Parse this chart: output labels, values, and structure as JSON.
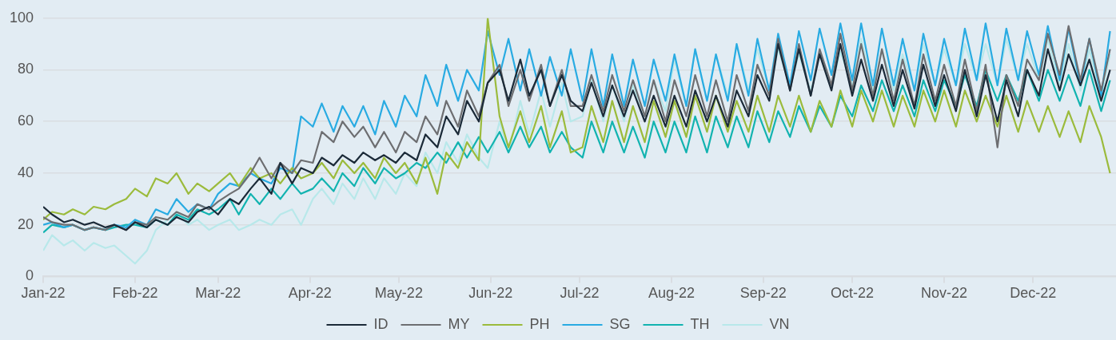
{
  "chart_data": {
    "type": "line",
    "x": [
      "2022-01-01",
      "2022-01-04",
      "2022-01-08",
      "2022-01-11",
      "2022-01-15",
      "2022-01-18",
      "2022-01-22",
      "2022-01-25",
      "2022-01-29",
      "2022-02-01",
      "2022-02-05",
      "2022-02-08",
      "2022-02-12",
      "2022-02-15",
      "2022-02-19",
      "2022-02-22",
      "2022-02-26",
      "2022-03-01",
      "2022-03-05",
      "2022-03-08",
      "2022-03-12",
      "2022-03-15",
      "2022-03-19",
      "2022-03-22",
      "2022-03-26",
      "2022-03-29",
      "2022-04-02",
      "2022-04-05",
      "2022-04-09",
      "2022-04-12",
      "2022-04-16",
      "2022-04-19",
      "2022-04-23",
      "2022-04-26",
      "2022-04-30",
      "2022-05-03",
      "2022-05-07",
      "2022-05-10",
      "2022-05-14",
      "2022-05-17",
      "2022-05-21",
      "2022-05-24",
      "2022-05-28",
      "2022-05-31",
      "2022-06-04",
      "2022-06-07",
      "2022-06-11",
      "2022-06-14",
      "2022-06-18",
      "2022-06-21",
      "2022-06-25",
      "2022-06-28",
      "2022-07-02",
      "2022-07-05",
      "2022-07-09",
      "2022-07-12",
      "2022-07-16",
      "2022-07-19",
      "2022-07-23",
      "2022-07-26",
      "2022-07-30",
      "2022-08-02",
      "2022-08-06",
      "2022-08-09",
      "2022-08-13",
      "2022-08-16",
      "2022-08-20",
      "2022-08-23",
      "2022-08-27",
      "2022-08-30",
      "2022-09-03",
      "2022-09-06",
      "2022-09-10",
      "2022-09-13",
      "2022-09-17",
      "2022-09-20",
      "2022-09-24",
      "2022-09-27",
      "2022-10-01",
      "2022-10-04",
      "2022-10-08",
      "2022-10-11",
      "2022-10-15",
      "2022-10-18",
      "2022-10-22",
      "2022-10-25",
      "2022-10-29",
      "2022-11-01",
      "2022-11-05",
      "2022-11-08",
      "2022-11-12",
      "2022-11-15",
      "2022-11-19",
      "2022-11-22",
      "2022-11-26",
      "2022-11-29",
      "2022-12-03",
      "2022-12-06",
      "2022-12-10",
      "2022-12-13",
      "2022-12-17",
      "2022-12-20",
      "2022-12-24",
      "2022-12-27"
    ],
    "series": [
      {
        "name": "ID",
        "color": "#1b2a38",
        "values": [
          27,
          24,
          21,
          22,
          20,
          21,
          19,
          20,
          18,
          21,
          19,
          22,
          20,
          23,
          21,
          25,
          27,
          24,
          30,
          28,
          34,
          38,
          32,
          44,
          36,
          42,
          40,
          46,
          43,
          47,
          44,
          48,
          45,
          47,
          44,
          48,
          45,
          55,
          50,
          62,
          55,
          68,
          60,
          75,
          80,
          68,
          84,
          70,
          80,
          66,
          78,
          68,
          64,
          75,
          62,
          74,
          62,
          72,
          60,
          70,
          58,
          70,
          58,
          72,
          60,
          70,
          58,
          72,
          62,
          78,
          68,
          90,
          72,
          88,
          70,
          86,
          72,
          90,
          70,
          84,
          68,
          82,
          66,
          80,
          65,
          82,
          66,
          78,
          64,
          80,
          62,
          78,
          60,
          76,
          62,
          80,
          70,
          88,
          72,
          86,
          74,
          84,
          68,
          80
        ]
      },
      {
        "name": "MY",
        "color": "#6d6e71",
        "values": [
          23,
          21,
          20,
          20,
          18,
          19,
          18,
          20,
          18,
          21,
          20,
          23,
          22,
          25,
          23,
          28,
          26,
          29,
          32,
          34,
          40,
          46,
          38,
          44,
          40,
          45,
          44,
          56,
          52,
          60,
          54,
          58,
          50,
          56,
          48,
          56,
          52,
          62,
          55,
          68,
          58,
          72,
          62,
          75,
          82,
          66,
          80,
          68,
          82,
          66,
          80,
          66,
          66,
          78,
          64,
          78,
          64,
          76,
          62,
          76,
          60,
          76,
          62,
          78,
          62,
          76,
          60,
          78,
          64,
          82,
          70,
          92,
          72,
          90,
          70,
          88,
          74,
          94,
          72,
          90,
          70,
          88,
          68,
          84,
          66,
          86,
          68,
          82,
          66,
          84,
          64,
          82,
          50,
          78,
          66,
          84,
          76,
          94,
          78,
          97,
          76,
          92,
          72,
          88
        ]
      },
      {
        "name": "PH",
        "color": "#9bbb3c",
        "values": [
          22,
          25,
          24,
          26,
          24,
          27,
          26,
          28,
          30,
          34,
          31,
          38,
          36,
          40,
          32,
          36,
          33,
          36,
          40,
          35,
          42,
          38,
          40,
          36,
          42,
          38,
          40,
          44,
          38,
          45,
          40,
          44,
          38,
          46,
          40,
          44,
          36,
          46,
          32,
          48,
          42,
          52,
          45,
          100,
          62,
          50,
          64,
          52,
          66,
          50,
          64,
          48,
          50,
          66,
          52,
          68,
          52,
          66,
          52,
          68,
          54,
          68,
          54,
          70,
          56,
          70,
          56,
          68,
          56,
          70,
          56,
          70,
          58,
          70,
          56,
          68,
          58,
          72,
          58,
          72,
          60,
          72,
          58,
          70,
          58,
          72,
          60,
          72,
          58,
          72,
          60,
          70,
          58,
          70,
          56,
          68,
          56,
          66,
          54,
          64,
          52,
          66,
          54,
          40
        ]
      },
      {
        "name": "SG",
        "color": "#29abe2",
        "values": [
          20,
          21,
          19,
          20,
          18,
          19,
          18,
          20,
          19,
          22,
          20,
          26,
          24,
          30,
          25,
          28,
          26,
          32,
          36,
          35,
          40,
          38,
          36,
          42,
          40,
          62,
          58,
          67,
          56,
          66,
          58,
          66,
          55,
          68,
          58,
          70,
          62,
          78,
          66,
          82,
          68,
          80,
          72,
          95,
          78,
          92,
          72,
          88,
          70,
          85,
          70,
          88,
          68,
          88,
          66,
          86,
          66,
          84,
          66,
          84,
          68,
          86,
          66,
          88,
          68,
          86,
          68,
          90,
          70,
          92,
          72,
          94,
          74,
          95,
          76,
          96,
          78,
          98,
          76,
          98,
          74,
          96,
          74,
          92,
          72,
          94,
          74,
          92,
          74,
          96,
          76,
          98,
          74,
          96,
          76,
          95,
          78,
          97,
          76,
          96,
          74,
          92,
          70,
          95
        ]
      },
      {
        "name": "TH",
        "color": "#12b3b0",
        "values": [
          17,
          20,
          19,
          20,
          18,
          19,
          18,
          19,
          20,
          20,
          19,
          22,
          20,
          24,
          22,
          26,
          24,
          26,
          30,
          24,
          32,
          28,
          34,
          30,
          36,
          32,
          34,
          38,
          33,
          40,
          35,
          42,
          36,
          42,
          38,
          40,
          44,
          42,
          48,
          44,
          52,
          46,
          54,
          48,
          56,
          48,
          58,
          50,
          58,
          48,
          56,
          50,
          46,
          60,
          48,
          60,
          48,
          58,
          46,
          60,
          48,
          60,
          48,
          62,
          48,
          62,
          50,
          62,
          50,
          64,
          52,
          64,
          54,
          66,
          56,
          66,
          58,
          70,
          62,
          74,
          64,
          76,
          64,
          74,
          62,
          76,
          64,
          76,
          66,
          78,
          66,
          80,
          68,
          78,
          68,
          80,
          68,
          80,
          68,
          78,
          66,
          80,
          64,
          76
        ]
      },
      {
        "name": "VN",
        "color": "#b8e8ea",
        "values": [
          10,
          16,
          12,
          14,
          10,
          13,
          11,
          12,
          8,
          5,
          10,
          18,
          22,
          25,
          20,
          22,
          18,
          20,
          22,
          18,
          20,
          22,
          20,
          24,
          26,
          20,
          30,
          34,
          28,
          36,
          30,
          38,
          30,
          38,
          32,
          40,
          35,
          48,
          40,
          52,
          44,
          55,
          46,
          42,
          60,
          48,
          68,
          55,
          72,
          58,
          75,
          60,
          62,
          76,
          60,
          74,
          60,
          74,
          62,
          76,
          64,
          84,
          66,
          88,
          68,
          86,
          70,
          90,
          72,
          88,
          72,
          88,
          74,
          86,
          72,
          86,
          74,
          87,
          74,
          92,
          72,
          88,
          72,
          86,
          72,
          90,
          74,
          88,
          74,
          90,
          76,
          90,
          74,
          92,
          76,
          90,
          76,
          92,
          74,
          90,
          72,
          88,
          70,
          86
        ]
      }
    ],
    "xlim": [
      "2022-01-01",
      "2022-12-29"
    ],
    "xticks": [
      {
        "value": "2022-01-01",
        "label": "Jan-22"
      },
      {
        "value": "2022-02-01",
        "label": "Feb-22"
      },
      {
        "value": "2022-03-01",
        "label": "Mar-22"
      },
      {
        "value": "2022-04-01",
        "label": "Apr-22"
      },
      {
        "value": "2022-05-01",
        "label": "May-22"
      },
      {
        "value": "2022-06-01",
        "label": "Jun-22"
      },
      {
        "value": "2022-07-01",
        "label": "Jul-22"
      },
      {
        "value": "2022-08-01",
        "label": "Aug-22"
      },
      {
        "value": "2022-09-01",
        "label": "Sep-22"
      },
      {
        "value": "2022-10-01",
        "label": "Oct-22"
      },
      {
        "value": "2022-11-01",
        "label": "Nov-22"
      },
      {
        "value": "2022-12-01",
        "label": "Dec-22"
      }
    ],
    "ylim": [
      0,
      100
    ],
    "yticks": [
      0,
      20,
      40,
      60,
      80,
      100
    ],
    "grid": "y",
    "legend": "bottom",
    "marker": "none",
    "line_style": "solid"
  }
}
